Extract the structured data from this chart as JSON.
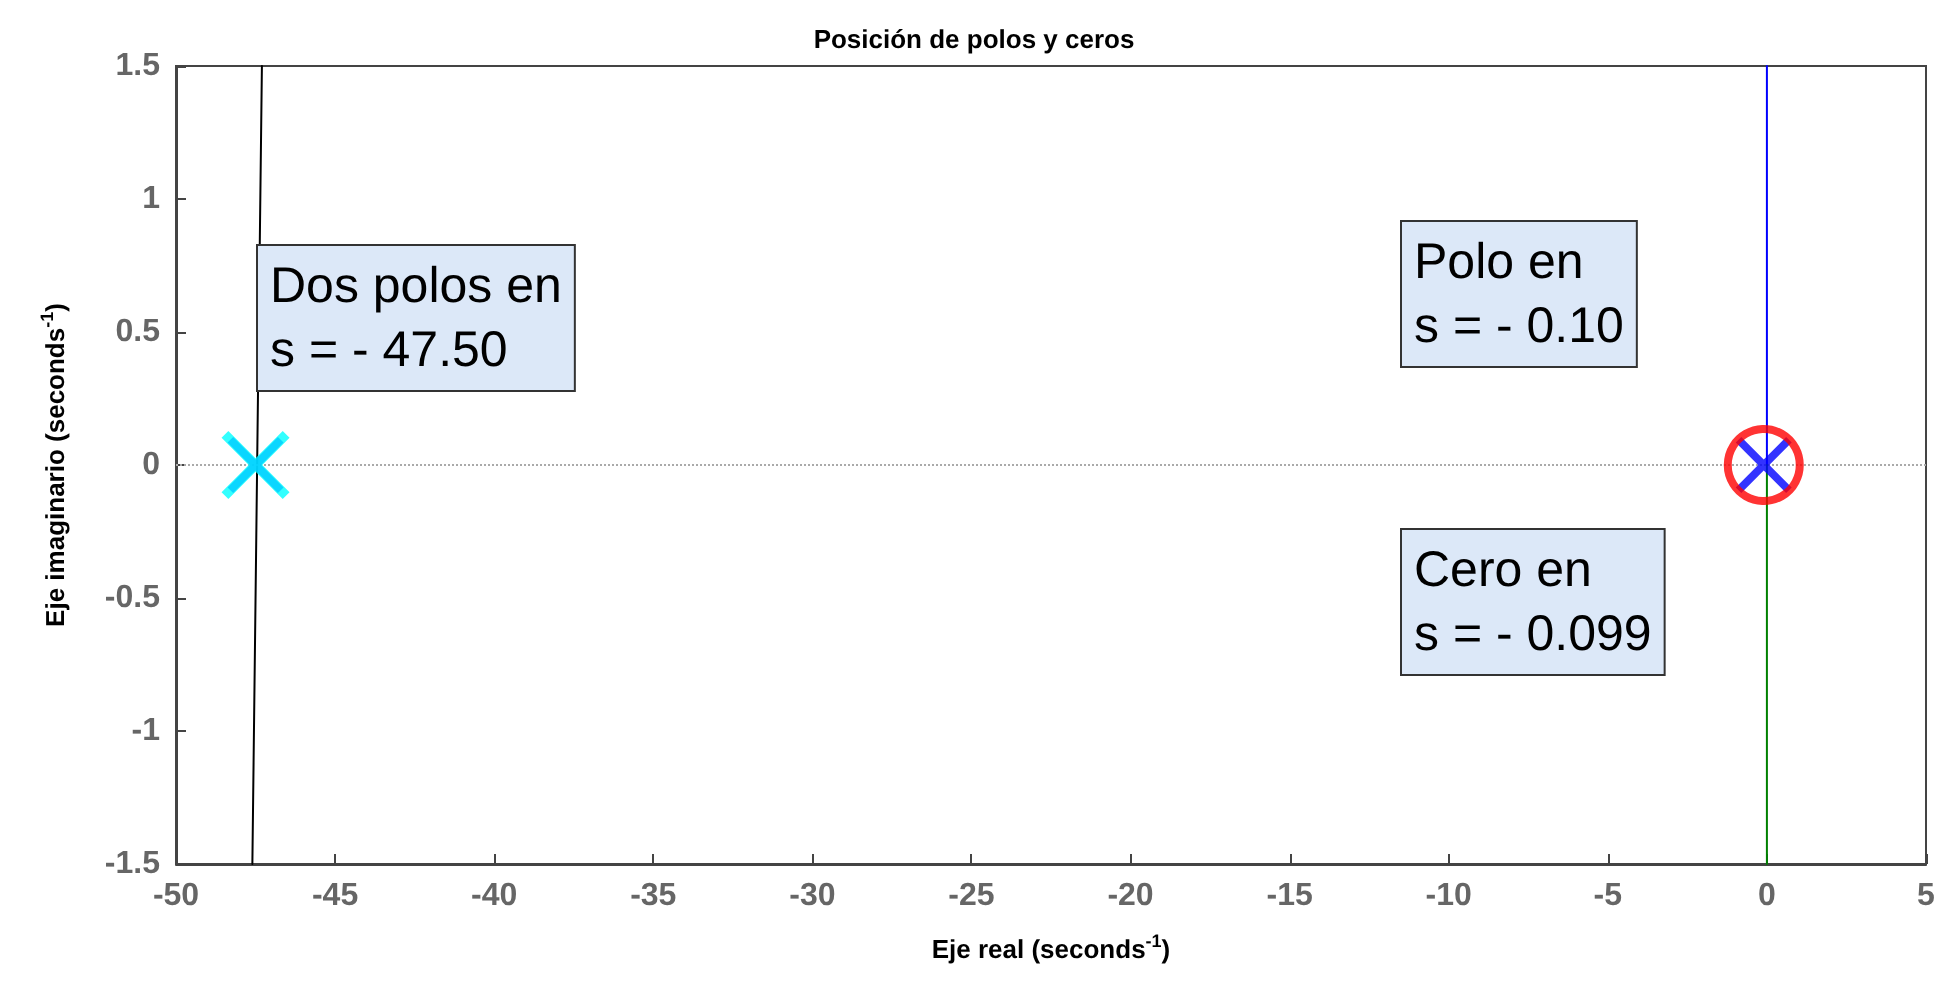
{
  "chart_data": {
    "type": "scatter",
    "title": "Posición de polos y ceros",
    "xlabel": "Eje real (seconds$^{-1}$)",
    "ylabel": "Eje imaginario (seconds$^{-1}$)",
    "xlim": [
      -50,
      5
    ],
    "xticks": [
      -50,
      -45,
      -40,
      -35,
      -30,
      -25,
      -20,
      -15,
      -10,
      -5,
      0,
      5
    ],
    "ylim": [
      -1.5,
      1.5
    ],
    "yticks": [
      -1.5,
      -1,
      -0.5,
      0,
      0.5,
      1,
      1.5
    ],
    "grid": false,
    "series": [
      {
        "type": "line",
        "marker": "none",
        "color": "#000000",
        "x": [
          -47.3,
          -47.6
        ],
        "values": [
          1.5,
          -1.5
        ]
      },
      {
        "type": "line",
        "marker": "none",
        "color": "#0000ff",
        "x": [
          0,
          0
        ],
        "values": [
          0,
          1.5
        ]
      },
      {
        "type": "line",
        "marker": "none",
        "color": "#008000",
        "x": [
          0,
          0
        ],
        "values": [
          0,
          -1.5
        ]
      },
      {
        "marker": "cross",
        "color": "#0000ff",
        "x": [
          -47.5
        ],
        "values": [
          0
        ]
      },
      {
        "marker": "cross",
        "color": "#00ffff",
        "x": [
          -47.5
        ],
        "values": [
          0
        ]
      },
      {
        "marker": "cross",
        "color": "#0000ff",
        "x": [
          -0.1
        ],
        "values": [
          0
        ]
      },
      {
        "marker": "circle",
        "color": "#ff0000",
        "x": [
          -0.099
        ],
        "values": [
          0
        ]
      }
    ],
    "ref_lines": [
      {
        "axis": "y",
        "value": 0,
        "color": "#aaaaaa",
        "line_style": "dotted"
      }
    ],
    "annotations": [
      "Dos polos en\ns = - 47.50",
      "Polo en\ns = - 0.10",
      "Cero en\ns = - 0.099"
    ]
  }
}
